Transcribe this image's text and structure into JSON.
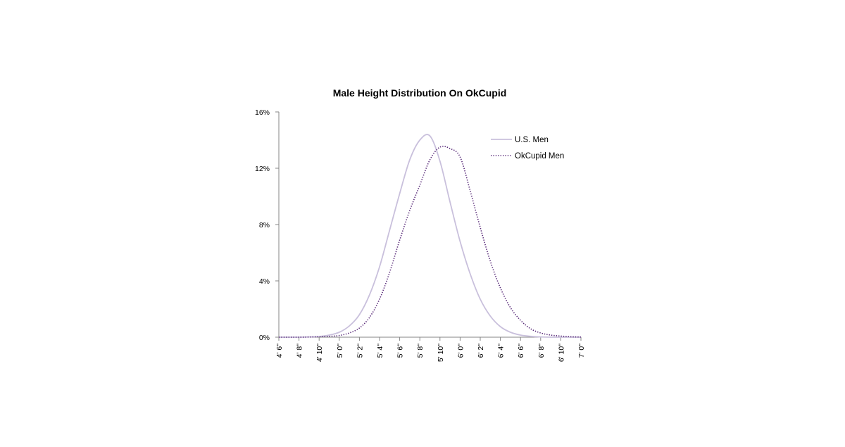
{
  "chart_data": {
    "type": "line",
    "title": "Male Height Distribution On OkCupid",
    "xlabel": "",
    "ylabel": "",
    "x_inches": [
      54,
      55,
      56,
      57,
      58,
      59,
      60,
      61,
      62,
      63,
      64,
      65,
      66,
      67,
      68,
      69,
      70,
      71,
      72,
      73,
      74,
      75,
      76,
      77,
      78,
      79,
      80,
      81,
      82,
      83,
      84
    ],
    "x_tick_labels": [
      "4' 6\"",
      "4' 8\"",
      "4' 10\"",
      "5' 0\"",
      "5' 2\"",
      "5' 4\"",
      "5' 6\"",
      "5' 8\"",
      "5' 10\"",
      "6' 0\"",
      "6' 2\"",
      "6' 4\"",
      "6' 6\"",
      "6' 8\"",
      "6' 10\"",
      "7' 0\""
    ],
    "x_tick_inches": [
      54,
      56,
      58,
      60,
      62,
      64,
      66,
      68,
      70,
      72,
      74,
      76,
      78,
      80,
      82,
      84
    ],
    "xlim_inches": [
      54,
      84
    ],
    "y_ticks": [
      0,
      4,
      8,
      12,
      16
    ],
    "y_tick_labels": [
      "0%",
      "4%",
      "8%",
      "12%",
      "16%"
    ],
    "ylim": [
      0,
      16
    ],
    "y_unit": "%",
    "grid": false,
    "legend_position": "top-right",
    "series": [
      {
        "name": "U.S. Men",
        "color": "#c9c0dc",
        "style": "solid",
        "values": [
          0,
          0,
          0,
          0.02,
          0.05,
          0.15,
          0.35,
          0.8,
          1.6,
          3.0,
          5.0,
          7.6,
          10.2,
          12.6,
          14.0,
          14.3,
          12.5,
          9.6,
          6.8,
          4.5,
          2.7,
          1.5,
          0.75,
          0.35,
          0.15,
          0.06,
          0.02,
          0,
          0,
          0,
          0
        ]
      },
      {
        "name": "OkCupid Men",
        "color": "#5a2c7a",
        "style": "dotted",
        "values": [
          0,
          0,
          0,
          0.01,
          0.03,
          0.06,
          0.12,
          0.3,
          0.65,
          1.4,
          2.7,
          4.6,
          6.9,
          9.0,
          10.8,
          12.6,
          13.5,
          13.4,
          12.8,
          10.4,
          7.8,
          5.4,
          3.5,
          2.1,
          1.2,
          0.6,
          0.3,
          0.15,
          0.08,
          0.03,
          0.01
        ]
      }
    ]
  }
}
